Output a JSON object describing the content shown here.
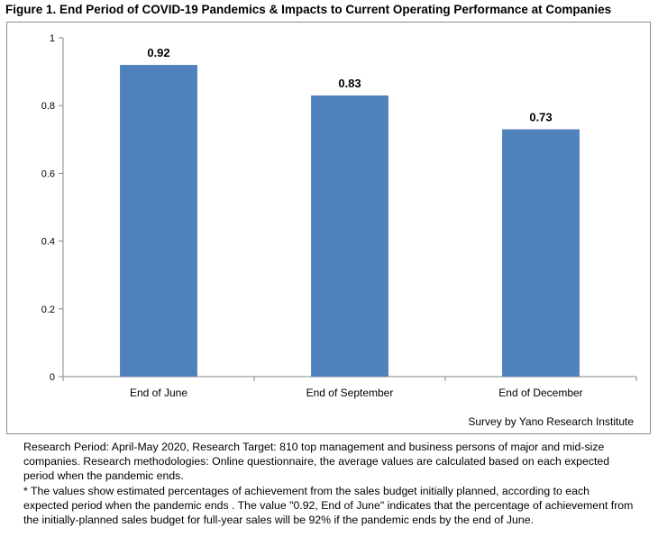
{
  "title": "Figure 1. End Period of COVID-19 Pandemics & Impacts to Current Operating Performance at Companies",
  "credit": "Survey by Yano Research Institute",
  "notes": [
    "Research Period: April-May 2020, Research Target: 810 top management and business persons of major and mid-size companies. Research methodologies: Online questionnaire, the average values  are calculated based on  each expected period when the pandemic ends.",
    "* The values show estimated percentages of achievement from the sales budget initially planned, according to each expected period when the pandemic ends . The value \"0.92, End of June\" indicates that the percentage of achievement from the initially-planned sales budget for full-year sales will be 92% if the pandemic ends by the end of June."
  ],
  "colors": {
    "bar": "#4f81bd",
    "axis": "#868686",
    "grid": "none"
  },
  "chart_data": {
    "type": "bar",
    "categories": [
      "End of June",
      "End of September",
      "End of December"
    ],
    "values": [
      0.92,
      0.83,
      0.73
    ],
    "data_labels": [
      "0.92",
      "0.83",
      "0.73"
    ],
    "title": "",
    "xlabel": "",
    "ylabel": "",
    "ylim": [
      0,
      1
    ],
    "yticks": [
      0,
      0.2,
      0.4,
      0.6,
      0.8,
      1
    ],
    "ytick_labels": [
      "0",
      "0.2",
      "0.4",
      "0.6",
      "0.8",
      "1"
    ],
    "grid": false,
    "legend": "none"
  }
}
